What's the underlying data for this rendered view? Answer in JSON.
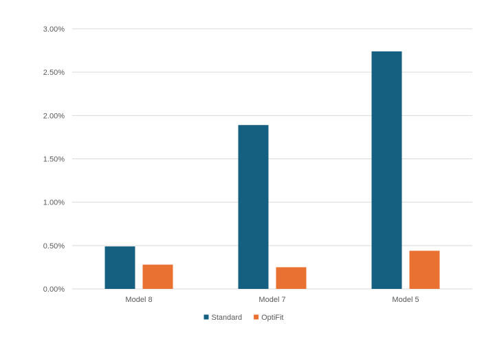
{
  "chart_data": {
    "type": "bar",
    "title": "",
    "xlabel": "",
    "ylabel": "",
    "categories": [
      "Model 8",
      "Model 7",
      "Model 5"
    ],
    "series": [
      {
        "name": "Standard",
        "values": [
          0.49,
          1.89,
          2.74
        ],
        "color": "#155f81"
      },
      {
        "name": "OptiFit",
        "values": [
          0.28,
          0.25,
          0.44
        ],
        "color": "#e97132"
      }
    ],
    "y_ticks": [
      "0.00%",
      "0.50%",
      "1.00%",
      "1.50%",
      "2.00%",
      "2.50%",
      "3.00%"
    ],
    "ylim": [
      0,
      3
    ],
    "grid": true,
    "legend_position": "bottom",
    "gridline_color": "#d9d9d9"
  }
}
